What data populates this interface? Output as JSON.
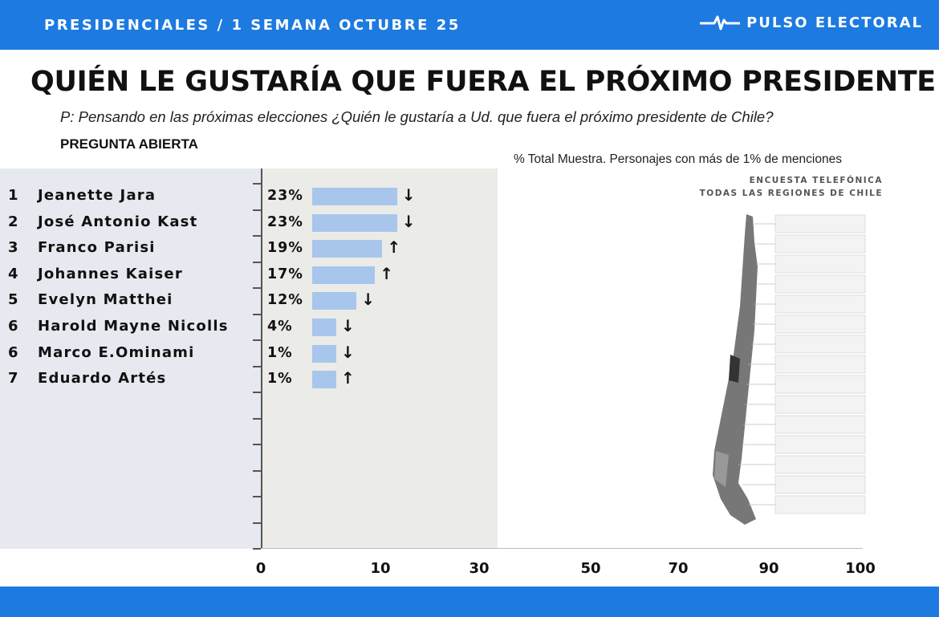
{
  "header": {
    "left": "PRESIDENCIALES / 1 SEMANA OCTUBRE 25",
    "brand": "PULSO ELECTORAL",
    "brand_icon": "pulse-line-icon"
  },
  "title": "QUIÉN LE GUSTARÍA QUE FUERA EL PRÓXIMO PRESIDENTE",
  "question": "P: Pensando en las próximas elecciones  ¿Quién le gustaría a  Ud. que fuera  el próximo presidente de Chile?",
  "question_type": "PREGUNTA ABIERTA",
  "note": "% Total Muestra. Personajes con más de 1% de menciones",
  "survey": {
    "line1": "ENCUESTA TELEFÓNICA",
    "line2": "TODAS LAS REGIONES DE CHILE"
  },
  "colors": {
    "header_bg": "#1c7ae0",
    "bar": "#a8c6ec",
    "name_panel": "#e6e9ef",
    "plot_panel": "#ebebe8"
  },
  "chart_data": {
    "type": "bar",
    "orientation": "horizontal",
    "categories": [
      "Jeanette Jara",
      "José Antonio Kast",
      "Franco Parisi",
      "Johannes Kaiser",
      "Evelyn Matthei",
      "Harold Mayne Nicolls",
      "Marco E.Ominami",
      "Eduardo Artés"
    ],
    "ranks": [
      "1",
      "2",
      "3",
      "4",
      "5",
      "6",
      "6",
      "7"
    ],
    "values": [
      23,
      23,
      19,
      17,
      12,
      4,
      1,
      1
    ],
    "value_labels": [
      "23%",
      "23%",
      "19%",
      "17%",
      "12%",
      "4%",
      "1%",
      "1%"
    ],
    "trend": [
      "down",
      "down",
      "up",
      "up",
      "down",
      "down",
      "down",
      "up"
    ],
    "x_tick_labels": [
      "0",
      "10",
      "30",
      "50",
      "70",
      "90",
      "100"
    ],
    "xlim": [
      0,
      100
    ],
    "title": "",
    "xlabel": "",
    "ylabel": ""
  }
}
